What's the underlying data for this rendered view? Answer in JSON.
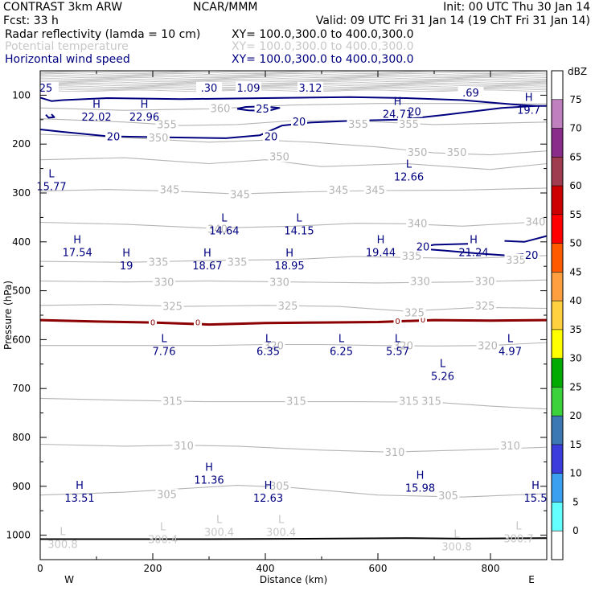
{
  "header": {
    "line1_left": "CONTRAST  3km ARW",
    "line1_mid": "NCAR/MMM",
    "line1_right": "Init: 00 UTC Thu 30 Jan 14",
    "line2_left": "Fcst:   33 h",
    "line2_right": "Valid: 09 UTC Fri 31 Jan 14 (19 ChT Fri 31 Jan 14)",
    "fields": [
      {
        "label": "Radar reflectivity (lamda = 10 cm)",
        "xy": "XY= 100.0,300.0 to 400.0,300.0",
        "color": "#000000"
      },
      {
        "label": "Potential temperature",
        "xy": "XY= 100.0,300.0 to 400.0,300.0",
        "color": "#c8c8c8"
      },
      {
        "label": "Horizontal wind speed",
        "xy": "XY= 100.0,300.0 to 400.0,300.0",
        "color": "#000080"
      }
    ]
  },
  "chart_data": {
    "type": "contour",
    "xlabel": "Distance (km)",
    "ylabel": "Pressure (hPa)",
    "xlim": [
      0,
      900
    ],
    "ylim": [
      1050,
      50
    ],
    "x_ticks": [
      "0",
      "200",
      "400",
      "600",
      "800"
    ],
    "y_ticks": [
      "100",
      "200",
      "300",
      "400",
      "500",
      "600",
      "700",
      "800",
      "900",
      "1000"
    ],
    "x_end_labels": {
      "left": "W",
      "right": "E"
    },
    "colorbar": {
      "unit": "dBZ",
      "levels": [
        "75",
        "70",
        "65",
        "60",
        "55",
        "50",
        "45",
        "40",
        "35",
        "30",
        "25",
        "20",
        "15",
        "10",
        "5",
        "0"
      ],
      "colors": [
        "#ffffff",
        "#c080c0",
        "#8a2d8a",
        "#a03c50",
        "#cc0000",
        "#ff0000",
        "#ff5a00",
        "#ff9f40",
        "#ffd040",
        "#ffff00",
        "#00aa00",
        "#3cd23c",
        "#3c78b4",
        "#3c3cdc",
        "#3ca0f0",
        "#64ffff",
        "#ffffff"
      ]
    },
    "theta_labels": [
      {
        "x": 320,
        "p": 128,
        "text": "360"
      },
      {
        "x": 225,
        "p": 161,
        "text": "355"
      },
      {
        "x": 565,
        "p": 160,
        "text": "355"
      },
      {
        "x": 655,
        "p": 160,
        "text": "355"
      },
      {
        "x": 210,
        "p": 188,
        "text": "350"
      },
      {
        "x": 425,
        "p": 227,
        "text": "350"
      },
      {
        "x": 670,
        "p": 218,
        "text": "350"
      },
      {
        "x": 740,
        "p": 218,
        "text": "350"
      },
      {
        "x": 230,
        "p": 294,
        "text": "345"
      },
      {
        "x": 355,
        "p": 304,
        "text": "345"
      },
      {
        "x": 530,
        "p": 295,
        "text": "345"
      },
      {
        "x": 595,
        "p": 295,
        "text": "345"
      },
      {
        "x": 315,
        "p": 375,
        "text": "340"
      },
      {
        "x": 670,
        "p": 363,
        "text": "340"
      },
      {
        "x": 880,
        "p": 360,
        "text": "340"
      },
      {
        "x": 210,
        "p": 442,
        "text": "335"
      },
      {
        "x": 350,
        "p": 442,
        "text": "335"
      },
      {
        "x": 660,
        "p": 430,
        "text": "335"
      },
      {
        "x": 845,
        "p": 438,
        "text": "335"
      },
      {
        "x": 220,
        "p": 483,
        "text": "330"
      },
      {
        "x": 425,
        "p": 483,
        "text": "330"
      },
      {
        "x": 675,
        "p": 482,
        "text": "330"
      },
      {
        "x": 790,
        "p": 482,
        "text": "330"
      },
      {
        "x": 235,
        "p": 533,
        "text": "325"
      },
      {
        "x": 440,
        "p": 532,
        "text": "325"
      },
      {
        "x": 665,
        "p": 546,
        "text": "325"
      },
      {
        "x": 790,
        "p": 532,
        "text": "325"
      },
      {
        "x": 415,
        "p": 613,
        "text": "320"
      },
      {
        "x": 645,
        "p": 613,
        "text": "320"
      },
      {
        "x": 795,
        "p": 613,
        "text": "320"
      },
      {
        "x": 235,
        "p": 727,
        "text": "315"
      },
      {
        "x": 455,
        "p": 727,
        "text": "315"
      },
      {
        "x": 655,
        "p": 727,
        "text": "315"
      },
      {
        "x": 695,
        "p": 727,
        "text": "315"
      },
      {
        "x": 255,
        "p": 818,
        "text": "310"
      },
      {
        "x": 630,
        "p": 831,
        "text": "310"
      },
      {
        "x": 835,
        "p": 818,
        "text": "310"
      },
      {
        "x": 225,
        "p": 918,
        "text": "305"
      },
      {
        "x": 425,
        "p": 900,
        "text": "305"
      },
      {
        "x": 725,
        "p": 920,
        "text": "305"
      }
    ],
    "top_theta_labels": [
      {
        "x": 10,
        "p": 86,
        "text": "25"
      },
      {
        "x": 300,
        "p": 86,
        "text": ".30"
      },
      {
        "x": 370,
        "p": 86,
        "text": "1.09"
      },
      {
        "x": 480,
        "p": 86,
        "text": "3.12"
      },
      {
        "x": 765,
        "p": 96,
        "text": ".69"
      }
    ],
    "wind_labels": [
      {
        "x": 395,
        "p": 129,
        "text": "25"
      },
      {
        "x": 665,
        "p": 135,
        "text": "20"
      },
      {
        "x": 460,
        "p": 155,
        "text": "20"
      },
      {
        "x": 130,
        "p": 186,
        "text": "20"
      },
      {
        "x": 410,
        "p": 186,
        "text": "20"
      },
      {
        "x": 680,
        "p": 411,
        "text": "20"
      },
      {
        "x": 873,
        "p": 428,
        "text": "20"
      }
    ],
    "extrema": [
      {
        "x": 100,
        "p": 126,
        "mark": "H",
        "value": "22.02",
        "color": "#000080"
      },
      {
        "x": 185,
        "p": 126,
        "mark": "H",
        "value": "22.96",
        "color": "#000080"
      },
      {
        "x": 635,
        "p": 120,
        "mark": "H",
        "value": "24.71",
        "color": "#000080"
      },
      {
        "x": 868,
        "p": 112,
        "mark": "H",
        "value": "19.7",
        "color": "#000080"
      },
      {
        "x": 20,
        "p": 268,
        "mark": "L",
        "value": "15.77",
        "color": "#000080"
      },
      {
        "x": 655,
        "p": 248,
        "mark": "L",
        "value": "12.66",
        "color": "#000080"
      },
      {
        "x": 327,
        "p": 358,
        "mark": "L",
        "value": "14.64",
        "color": "#000080"
      },
      {
        "x": 460,
        "p": 358,
        "mark": "L",
        "value": "14.15",
        "color": "#000080"
      },
      {
        "x": 66,
        "p": 403,
        "mark": "H",
        "value": "17.54",
        "color": "#000080"
      },
      {
        "x": 153,
        "p": 430,
        "mark": "H",
        "value": "19",
        "color": "#000080"
      },
      {
        "x": 297,
        "p": 430,
        "mark": "H",
        "value": "18.67",
        "color": "#000080"
      },
      {
        "x": 443,
        "p": 430,
        "mark": "H",
        "value": "18.95",
        "color": "#000080"
      },
      {
        "x": 605,
        "p": 403,
        "mark": "H",
        "value": "19.44",
        "color": "#000080"
      },
      {
        "x": 770,
        "p": 403,
        "mark": "H",
        "value": "21.24",
        "color": "#000080"
      },
      {
        "x": 220,
        "p": 605,
        "mark": "L",
        "value": "7.76",
        "color": "#000080"
      },
      {
        "x": 405,
        "p": 605,
        "mark": "L",
        "value": "6.35",
        "color": "#000080"
      },
      {
        "x": 535,
        "p": 605,
        "mark": "L",
        "value": "6.25",
        "color": "#000080"
      },
      {
        "x": 635,
        "p": 605,
        "mark": "L",
        "value": "5.57",
        "color": "#000080"
      },
      {
        "x": 715,
        "p": 656,
        "mark": "L",
        "value": "5.26",
        "color": "#000080"
      },
      {
        "x": 835,
        "p": 605,
        "mark": "L",
        "value": "4.97",
        "color": "#000080"
      },
      {
        "x": 70,
        "p": 905,
        "mark": "H",
        "value": "13.51",
        "color": "#000080"
      },
      {
        "x": 300,
        "p": 868,
        "mark": "H",
        "value": "11.36",
        "color": "#000080"
      },
      {
        "x": 405,
        "p": 905,
        "mark": "H",
        "value": "12.63",
        "color": "#000080"
      },
      {
        "x": 675,
        "p": 885,
        "mark": "H",
        "value": "15.98",
        "color": "#000080"
      },
      {
        "x": 880,
        "p": 905,
        "mark": "H",
        "value": "15.5",
        "color": "#000080"
      },
      {
        "x": 40,
        "p": 1000,
        "mark": "L",
        "value": "300.8",
        "color": "#c8c8c8"
      },
      {
        "x": 218,
        "p": 990,
        "mark": "L",
        "value": "300.4",
        "color": "#c8c8c8"
      },
      {
        "x": 318,
        "p": 975,
        "mark": "L",
        "value": "300.4",
        "color": "#c8c8c8"
      },
      {
        "x": 428,
        "p": 975,
        "mark": "L",
        "value": "300.4",
        "color": "#c8c8c8"
      },
      {
        "x": 740,
        "p": 1005,
        "mark": "L",
        "value": "300.8",
        "color": "#c8c8c8"
      },
      {
        "x": 850,
        "p": 988,
        "mark": "L",
        "value": "300.7",
        "color": "#c8c8c8"
      }
    ],
    "zero_labels": [
      {
        "x": 200,
        "p": 566,
        "text": "0"
      },
      {
        "x": 280,
        "p": 566,
        "text": "0"
      },
      {
        "x": 635,
        "p": 563,
        "text": "0"
      },
      {
        "x": 680,
        "p": 560,
        "text": "0"
      }
    ]
  }
}
